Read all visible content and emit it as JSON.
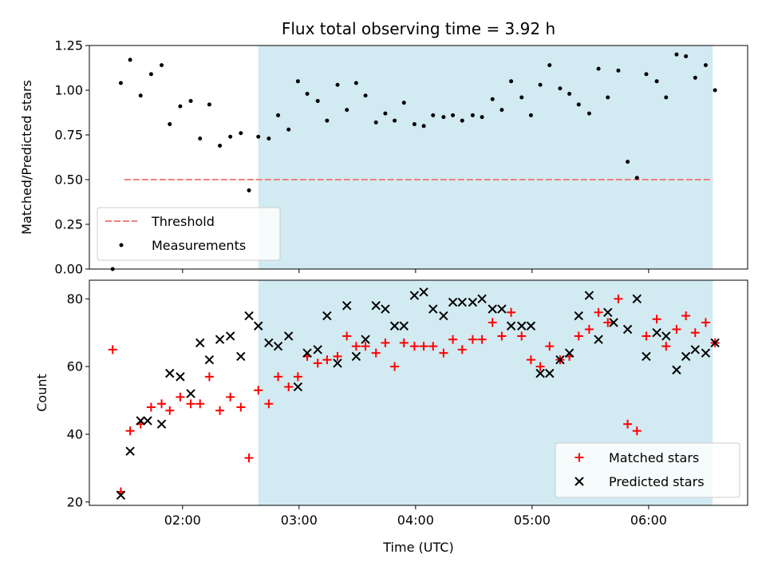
{
  "chart_data": [
    {
      "type": "scatter",
      "title": "Flux total observing time = 3.92 h",
      "xlabel": "",
      "ylabel": "Matched/Predicted stars",
      "ylim": [
        0,
        1.25
      ],
      "yticks": [
        "0.00",
        "0.25",
        "0.50",
        "0.75",
        "1.00",
        "1.25"
      ],
      "shaded_span_hours": [
        2.65,
        6.55
      ],
      "shade_color": "#add8e6",
      "legend_position": "lower-left",
      "threshold": {
        "name": "Threshold",
        "value": 0.5,
        "x_start_hours": 1.5,
        "x_end_hours": 6.55,
        "color": "#f08080"
      },
      "series": [
        {
          "name": "Measurements",
          "marker": "dot",
          "color": "#000000",
          "points": [
            [
              1.4,
              0.0
            ],
            [
              1.47,
              1.04
            ],
            [
              1.55,
              1.17
            ],
            [
              1.64,
              0.97
            ],
            [
              1.73,
              1.09
            ],
            [
              1.82,
              1.14
            ],
            [
              1.89,
              0.81
            ],
            [
              1.98,
              0.91
            ],
            [
              2.07,
              0.94
            ],
            [
              2.15,
              0.73
            ],
            [
              2.23,
              0.92
            ],
            [
              2.32,
              0.69
            ],
            [
              2.41,
              0.74
            ],
            [
              2.5,
              0.76
            ],
            [
              2.57,
              0.44
            ],
            [
              2.65,
              0.74
            ],
            [
              2.74,
              0.73
            ],
            [
              2.82,
              0.86
            ],
            [
              2.91,
              0.78
            ],
            [
              2.99,
              1.05
            ],
            [
              3.07,
              0.98
            ],
            [
              3.16,
              0.94
            ],
            [
              3.24,
              0.83
            ],
            [
              3.33,
              1.03
            ],
            [
              3.41,
              0.89
            ],
            [
              3.49,
              1.04
            ],
            [
              3.57,
              0.97
            ],
            [
              3.66,
              0.82
            ],
            [
              3.74,
              0.87
            ],
            [
              3.82,
              0.83
            ],
            [
              3.9,
              0.93
            ],
            [
              3.99,
              0.81
            ],
            [
              4.07,
              0.8
            ],
            [
              4.15,
              0.86
            ],
            [
              4.24,
              0.85
            ],
            [
              4.32,
              0.86
            ],
            [
              4.4,
              0.83
            ],
            [
              4.49,
              0.86
            ],
            [
              4.57,
              0.85
            ],
            [
              4.66,
              0.95
            ],
            [
              4.74,
              0.89
            ],
            [
              4.82,
              1.05
            ],
            [
              4.91,
              0.96
            ],
            [
              4.99,
              0.86
            ],
            [
              5.07,
              1.03
            ],
            [
              5.15,
              1.14
            ],
            [
              5.24,
              1.01
            ],
            [
              5.32,
              0.98
            ],
            [
              5.4,
              0.92
            ],
            [
              5.49,
              0.87
            ],
            [
              5.57,
              1.12
            ],
            [
              5.65,
              0.96
            ],
            [
              5.74,
              1.11
            ],
            [
              5.82,
              0.6
            ],
            [
              5.9,
              0.51
            ],
            [
              5.98,
              1.09
            ],
            [
              6.07,
              1.05
            ],
            [
              6.15,
              0.96
            ],
            [
              6.24,
              1.2
            ],
            [
              6.32,
              1.19
            ],
            [
              6.4,
              1.07
            ],
            [
              6.49,
              1.14
            ],
            [
              6.57,
              1.0
            ]
          ]
        }
      ]
    },
    {
      "type": "scatter",
      "title": "",
      "xlabel": "Time (UTC)",
      "ylabel": "Count",
      "xlim_hours": [
        1.2,
        6.85
      ],
      "ylim": [
        19,
        85.5
      ],
      "yticks": [
        "20",
        "40",
        "60",
        "80"
      ],
      "xticks": [
        "02:00",
        "03:00",
        "04:00",
        "05:00",
        "06:00"
      ],
      "shaded_span_hours": [
        2.65,
        6.55
      ],
      "shade_color": "#add8e6",
      "legend_position": "lower-right",
      "series": [
        {
          "name": "Matched stars",
          "marker": "plus",
          "color": "#ff0000",
          "points": [
            [
              1.4,
              65
            ],
            [
              1.47,
              23
            ],
            [
              1.55,
              41
            ],
            [
              1.64,
              43
            ],
            [
              1.73,
              48
            ],
            [
              1.82,
              49
            ],
            [
              1.89,
              47
            ],
            [
              1.98,
              51
            ],
            [
              2.07,
              49
            ],
            [
              2.15,
              49
            ],
            [
              2.23,
              57
            ],
            [
              2.32,
              47
            ],
            [
              2.41,
              51
            ],
            [
              2.5,
              48
            ],
            [
              2.57,
              33
            ],
            [
              2.65,
              53
            ],
            [
              2.74,
              49
            ],
            [
              2.82,
              57
            ],
            [
              2.91,
              54
            ],
            [
              2.99,
              57
            ],
            [
              3.07,
              63
            ],
            [
              3.16,
              61
            ],
            [
              3.24,
              62
            ],
            [
              3.33,
              63
            ],
            [
              3.41,
              69
            ],
            [
              3.49,
              66
            ],
            [
              3.57,
              66
            ],
            [
              3.66,
              64
            ],
            [
              3.74,
              67
            ],
            [
              3.82,
              60
            ],
            [
              3.9,
              67
            ],
            [
              3.99,
              66
            ],
            [
              4.07,
              66
            ],
            [
              4.15,
              66
            ],
            [
              4.24,
              64
            ],
            [
              4.32,
              68
            ],
            [
              4.4,
              65
            ],
            [
              4.49,
              68
            ],
            [
              4.57,
              68
            ],
            [
              4.66,
              73
            ],
            [
              4.74,
              69
            ],
            [
              4.82,
              76
            ],
            [
              4.91,
              69
            ],
            [
              4.99,
              62
            ],
            [
              5.07,
              60
            ],
            [
              5.15,
              66
            ],
            [
              5.24,
              62
            ],
            [
              5.32,
              63
            ],
            [
              5.4,
              69
            ],
            [
              5.49,
              71
            ],
            [
              5.57,
              76
            ],
            [
              5.65,
              73
            ],
            [
              5.74,
              80
            ],
            [
              5.82,
              43
            ],
            [
              5.9,
              41
            ],
            [
              5.98,
              69
            ],
            [
              6.07,
              74
            ],
            [
              6.15,
              66
            ],
            [
              6.24,
              71
            ],
            [
              6.32,
              75
            ],
            [
              6.4,
              70
            ],
            [
              6.49,
              73
            ],
            [
              6.57,
              67
            ]
          ]
        },
        {
          "name": "Predicted stars",
          "marker": "x",
          "color": "#000000",
          "points": [
            [
              1.47,
              22
            ],
            [
              1.55,
              35
            ],
            [
              1.64,
              44
            ],
            [
              1.7,
              44
            ],
            [
              1.82,
              43
            ],
            [
              1.89,
              58
            ],
            [
              1.98,
              57
            ],
            [
              2.07,
              52
            ],
            [
              2.15,
              67
            ],
            [
              2.23,
              62
            ],
            [
              2.32,
              68
            ],
            [
              2.41,
              69
            ],
            [
              2.5,
              63
            ],
            [
              2.57,
              75
            ],
            [
              2.65,
              72
            ],
            [
              2.74,
              67
            ],
            [
              2.82,
              66
            ],
            [
              2.91,
              69
            ],
            [
              2.99,
              54
            ],
            [
              3.07,
              64
            ],
            [
              3.16,
              65
            ],
            [
              3.24,
              75
            ],
            [
              3.33,
              61
            ],
            [
              3.41,
              78
            ],
            [
              3.49,
              63
            ],
            [
              3.57,
              68
            ],
            [
              3.66,
              78
            ],
            [
              3.74,
              77
            ],
            [
              3.82,
              72
            ],
            [
              3.9,
              72
            ],
            [
              3.99,
              81
            ],
            [
              4.07,
              82
            ],
            [
              4.15,
              77
            ],
            [
              4.24,
              75
            ],
            [
              4.32,
              79
            ],
            [
              4.4,
              79
            ],
            [
              4.49,
              79
            ],
            [
              4.57,
              80
            ],
            [
              4.66,
              77
            ],
            [
              4.74,
              77
            ],
            [
              4.82,
              72
            ],
            [
              4.91,
              72
            ],
            [
              4.99,
              72
            ],
            [
              5.07,
              58
            ],
            [
              5.15,
              58
            ],
            [
              5.24,
              62
            ],
            [
              5.32,
              64
            ],
            [
              5.4,
              75
            ],
            [
              5.49,
              81
            ],
            [
              5.57,
              68
            ],
            [
              5.65,
              76
            ],
            [
              5.7,
              73
            ],
            [
              5.82,
              71
            ],
            [
              5.9,
              80
            ],
            [
              5.98,
              63
            ],
            [
              6.07,
              70
            ],
            [
              6.15,
              69
            ],
            [
              6.24,
              59
            ],
            [
              6.32,
              63
            ],
            [
              6.4,
              65
            ],
            [
              6.49,
              64
            ],
            [
              6.57,
              67
            ]
          ]
        }
      ]
    }
  ]
}
